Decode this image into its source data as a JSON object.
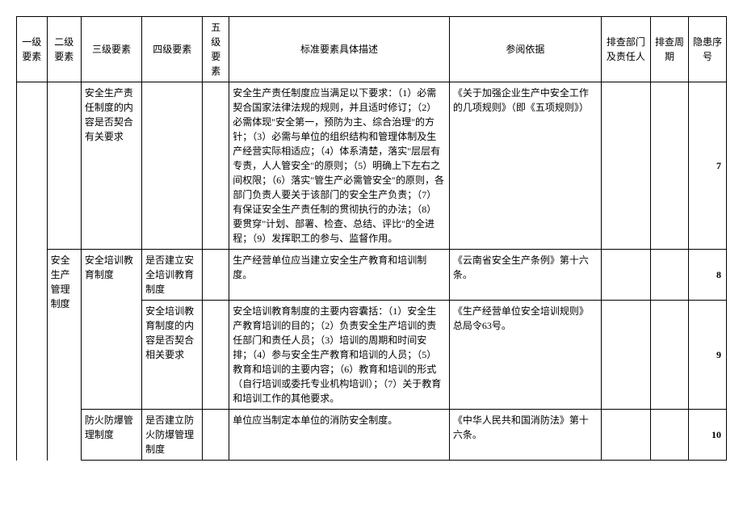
{
  "headers": {
    "c1": "一级要素",
    "c2": "二级要素",
    "c3": "三级要素",
    "c4": "四级要素",
    "c5": "五级要素",
    "c6": "标准要素具体描述",
    "c7": "参阅依据",
    "c8": "排查部门及责任人",
    "c9": "排查周期",
    "c10": "隐患序号"
  },
  "rows": [
    {
      "c3": "安全生产责任制度的内容是否契合有关要求",
      "c6": "安全生产责任制度应当满足以下要求：（1）必需契合国家法律法规的规则，并且适时修订；（2）必需体现\"安全第一，预防为主、综合治理\"的方针；（3）必需与单位的组织结构和管理体制及生产经营实际相适应；（4）体系清楚，落实\"层层有专责，人人管安全\"的原则；（5）明确上下左右之间权限；（6）落实\"管生产必需管安全\"的原则，各部门负责人要关于该部门的安全生产负责；（7）有保证安全生产责任制的贯彻执行的办法；（8）要贯穿\"计划、部署、检查、总结、评比\"的全进程；（9）发挥职工的参与、监督作用。",
      "c7": "《关于加强企业生产中安全工作的几项规则》（即《五项规则》）",
      "num": "7"
    },
    {
      "c2": "安全生产管理制度",
      "c3": "安全培训教育制度",
      "c4": "是否建立安全培训教育制度",
      "c6": "生产经营单位应当建立安全生产教育和培训制度。",
      "c7": "《云南省安全生产条例》第十六条。",
      "num": "8"
    },
    {
      "c4": "安全培训教育制度的内容是否契合相关要求",
      "c6": "安全培训教育制度的主要内容囊括：（1）安全生产教育培训的目的；（2）负责安全生产培训的责任部门和责任人员；（3）培训的周期和时间安排；（4）参与安全生产教育和培训的人员；（5）教育和培训的主要内容；（6）教育和培训的形式（自行培训或委托专业机构培训）；（7）关于教育和培训工作的其他要求。",
      "c7": "《生产经营单位安全培训规则》总局令63号。",
      "num": "9"
    },
    {
      "c3": "防火防爆管理制度",
      "c4": "是否建立防火防爆管理制度",
      "c6": "单位应当制定本单位的消防安全制度。",
      "c7": "《中华人民共和国消防法》第十六条。",
      "num": "10"
    }
  ]
}
